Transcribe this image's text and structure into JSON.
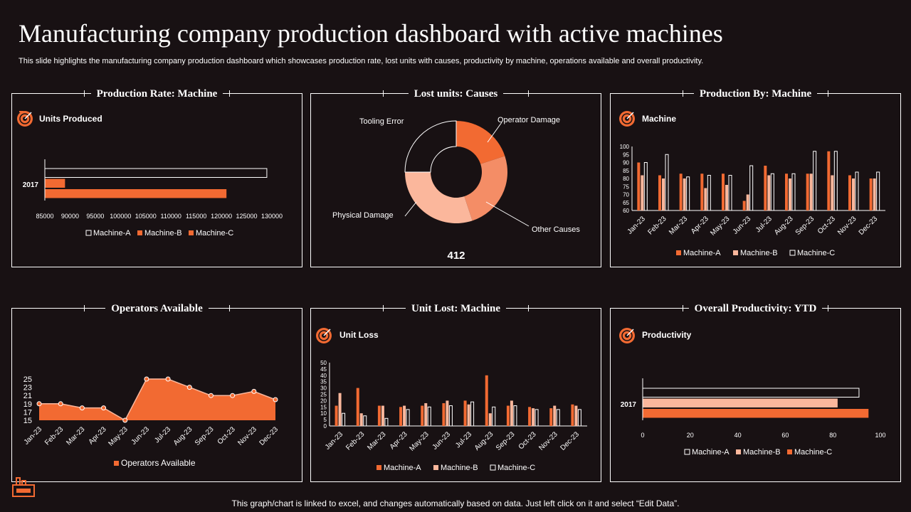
{
  "header": {
    "title": "Manufacturing company production dashboard with active machines",
    "subtitle": "This slide highlights the manufacturing company production dashboard which showcases production rate, lost units with causes, productivity by machine, operations available and overall productivity."
  },
  "footer": {
    "note": "This graph/chart is linked to excel, and changes automatically based on data. Just left click on it and select “Edit Data”."
  },
  "colors": {
    "accent": "#F26A32",
    "light": "#FBB79C",
    "background": "#181113",
    "outline": "#FFFFFF"
  },
  "panels": {
    "production_rate": {
      "title": "Production  Rate: Machine",
      "subheading": "Units Produced",
      "icon": "target-icon"
    },
    "lost_units": {
      "title": "Lost units: Causes",
      "total": "412"
    },
    "production_by": {
      "title": "Production  By: Machine",
      "subheading": "Machine",
      "icon": "target-icon"
    },
    "operators": {
      "title": "Operators Available"
    },
    "unit_lost": {
      "title": "Unit Lost: Machine",
      "subheading": "Unit Loss",
      "icon": "target-icon"
    },
    "overall": {
      "title": "Overall Productivity:  YTD",
      "subheading": "Productivity",
      "icon": "target-icon"
    }
  },
  "chart_data": [
    {
      "id": "production_rate",
      "type": "bar",
      "orientation": "horizontal",
      "categories": [
        "2017"
      ],
      "series": [
        {
          "name": "Machine-A",
          "values": [
            129000
          ]
        },
        {
          "name": "Machine-B",
          "values": [
            89000
          ]
        },
        {
          "name": "Machine-C",
          "values": [
            121000
          ]
        }
      ],
      "xlim": [
        85000,
        130000
      ],
      "ticks": [
        "85000",
        "90000",
        "95000",
        "100000",
        "105000",
        "110000",
        "115000",
        "120000",
        "125000",
        "130000"
      ],
      "legend": [
        "Machine-A",
        "Machine-B",
        "Machine-C"
      ],
      "legend_position": "bottom"
    },
    {
      "id": "lost_units",
      "type": "pie",
      "style": "donut",
      "slices": [
        {
          "label": "Operator Damage",
          "value": 82
        },
        {
          "label": "Other Causes",
          "value": 103
        },
        {
          "label": "Physical Damage",
          "value": 124
        },
        {
          "label": "Tooling Error",
          "value": 103
        }
      ],
      "total": 412
    },
    {
      "id": "production_by",
      "type": "bar",
      "categories": [
        "Jan-23",
        "Feb-23",
        "Mar-23",
        "Apr-23",
        "May-23",
        "Jun-23",
        "Jul-23",
        "Aug-23",
        "Sep-23",
        "Oct-23",
        "Nov-23",
        "Dec-23"
      ],
      "series": [
        {
          "name": "Machine-A",
          "values": [
            90,
            82,
            83,
            83,
            83,
            66,
            88,
            83,
            83,
            97,
            82,
            80
          ]
        },
        {
          "name": "Machine-B",
          "values": [
            82,
            80,
            80,
            74,
            76,
            70,
            82,
            80,
            83,
            82,
            80,
            80
          ]
        },
        {
          "name": "Machine-C",
          "values": [
            90,
            95,
            81,
            82,
            82,
            88,
            83,
            83,
            97,
            97,
            84,
            84
          ]
        }
      ],
      "ylim": [
        60,
        100
      ],
      "yticks": [
        "60",
        "65",
        "70",
        "75",
        "80",
        "85",
        "90",
        "95",
        "100"
      ],
      "legend": [
        "Machine-A",
        "Machine-B",
        "Machine-C"
      ],
      "legend_position": "bottom"
    },
    {
      "id": "operators",
      "type": "area",
      "categories": [
        "Jan-23",
        "Feb-23",
        "Mar-23",
        "Apr-23",
        "May-23",
        "Jun-23",
        "Jul-23",
        "Aug-23",
        "Sep-23",
        "Oct-23",
        "Nov-23",
        "Dec-23"
      ],
      "values": [
        19,
        19,
        18,
        18,
        15,
        25,
        25,
        23,
        21,
        21,
        22,
        20
      ],
      "ylim": [
        15,
        25
      ],
      "yticks": [
        "15",
        "17",
        "19",
        "21",
        "23",
        "25"
      ],
      "legend": [
        "Operators Available"
      ],
      "legend_position": "bottom"
    },
    {
      "id": "unit_lost",
      "type": "bar",
      "categories": [
        "Jan-23",
        "Feb-23",
        "Mar-23",
        "Apr-23",
        "May-23",
        "Jun-23",
        "Jul-23",
        "Aug-23",
        "Sep-23",
        "Oct-23",
        "Nov-23",
        "Dec-23"
      ],
      "series": [
        {
          "name": "Machine-A",
          "values": [
            16,
            30,
            16,
            15,
            16,
            18,
            20,
            40,
            16,
            15,
            14,
            17
          ]
        },
        {
          "name": "Machine-B",
          "values": [
            26,
            10,
            16,
            16,
            18,
            20,
            17,
            10,
            20,
            14,
            16,
            16
          ]
        },
        {
          "name": "Machine-C",
          "values": [
            10,
            8,
            6,
            13,
            15,
            16,
            19,
            15,
            16,
            13,
            13,
            13
          ]
        }
      ],
      "ylim": [
        0,
        50
      ],
      "yticks": [
        "0",
        "5",
        "10",
        "15",
        "20",
        "25",
        "30",
        "35",
        "40",
        "45",
        "50"
      ],
      "legend": [
        "Machine-A",
        "Machine-B",
        "Machine-C"
      ],
      "legend_position": "bottom"
    },
    {
      "id": "overall",
      "type": "bar",
      "orientation": "horizontal",
      "categories": [
        "2017"
      ],
      "series": [
        {
          "name": "Machine-A",
          "values": [
            91
          ]
        },
        {
          "name": "Machine-B",
          "values": [
            82
          ]
        },
        {
          "name": "Machine-C",
          "values": [
            95
          ]
        }
      ],
      "xlim": [
        0,
        100
      ],
      "ticks": [
        "0",
        "20",
        "40",
        "60",
        "80",
        "100"
      ],
      "legend": [
        "Machine-A",
        "Machine-B",
        "Machine-C"
      ],
      "legend_position": "bottom"
    }
  ]
}
